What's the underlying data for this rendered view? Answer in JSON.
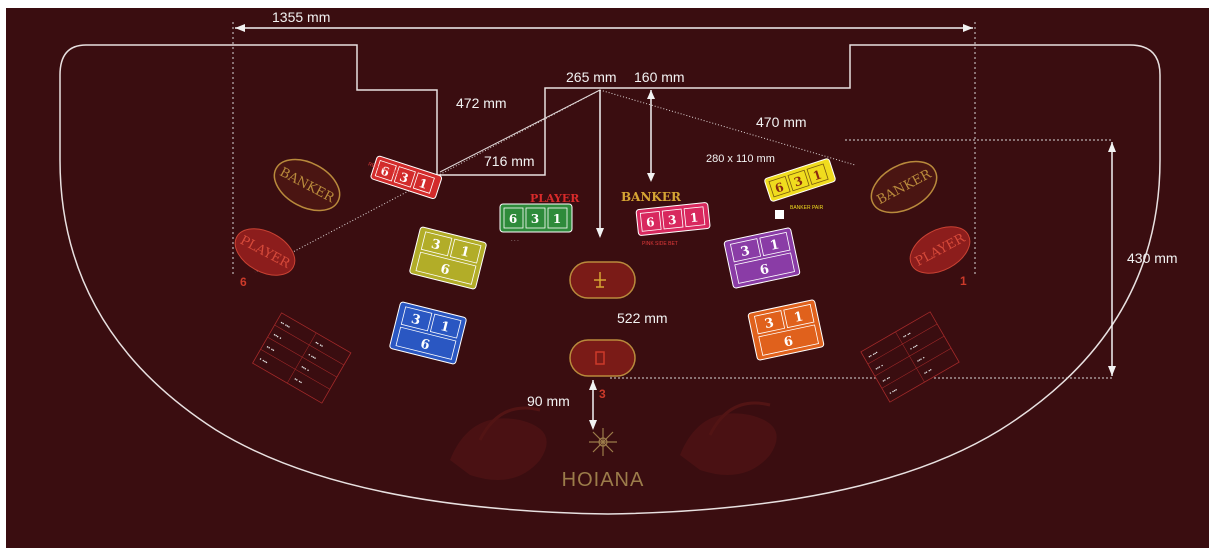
{
  "dimensions": {
    "width_top": "1355 mm",
    "center_a": "265 mm",
    "center_b": "160 mm",
    "left_long": "472 mm",
    "left_short": "716 mm",
    "right_long": "470 mm",
    "box_size": "280 x 110 mm",
    "height_right": "430 mm",
    "center_vertical": "522 mm",
    "bottom_gap": "90 mm"
  },
  "labels": {
    "banker_left": "BANKER",
    "banker_right": "BANKER",
    "player_left": "PLAYER",
    "player_right": "PLAYER",
    "player_center": "PLAYER",
    "banker_center": "BANKER",
    "logo": "HOIANA"
  },
  "seats": {
    "left": "6",
    "right": "1",
    "center": "3"
  },
  "card_values": {
    "a": "6",
    "b": "3",
    "c": "1"
  },
  "grid_values": {
    "top_left": "3",
    "top_right": "1",
    "bottom": "6"
  },
  "colors": {
    "felt": "#3a0d10",
    "felt_border": "#1e0a0b",
    "red_box": "#d22b2b",
    "green_box": "#2e8b3b",
    "pink_box": "#d8285e",
    "yellow_box": "#f0dc1e",
    "olive_box": "#b2ad28",
    "blue_box": "#2a57c2",
    "purple_box": "#8a3ca6",
    "orange_box": "#e0611c",
    "gold": "#b98a3c"
  }
}
